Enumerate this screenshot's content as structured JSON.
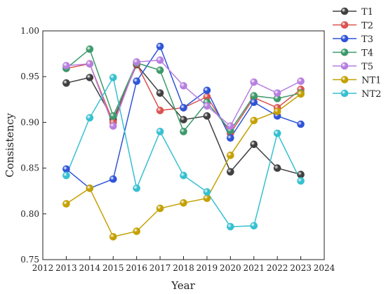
{
  "chart_data": {
    "type": "line",
    "xlabel": "Year",
    "ylabel": "Consistency",
    "xlim": [
      2012,
      2024
    ],
    "ylim": [
      0.75,
      1.0
    ],
    "xticks": [
      "2012",
      "2013",
      "2014",
      "2015",
      "2016",
      "2017",
      "2018",
      "2019",
      "2020",
      "2021",
      "2022",
      "2023",
      "2024"
    ],
    "yticks": [
      "0.75",
      "0.80",
      "0.85",
      "0.90",
      "0.95",
      "1.00"
    ],
    "legend_position": "right",
    "grid": false,
    "x": [
      2013,
      2014,
      2015,
      2016,
      2017,
      2018,
      2019,
      2020,
      2021,
      2022,
      2023
    ],
    "series": [
      {
        "name": "T1",
        "color": "#404040",
        "values": [
          0.943,
          0.949,
          0.903,
          0.963,
          0.932,
          0.903,
          0.907,
          0.846,
          0.876,
          0.85,
          0.843
        ]
      },
      {
        "name": "T2",
        "color": "#d9534f",
        "values": [
          0.959,
          0.964,
          0.9,
          0.964,
          0.913,
          0.916,
          0.928,
          0.888,
          0.927,
          0.916,
          0.936
        ]
      },
      {
        "name": "T3",
        "color": "#2f54d9",
        "values": [
          0.849,
          0.828,
          0.838,
          0.945,
          0.983,
          0.916,
          0.935,
          0.883,
          0.922,
          0.907,
          0.898
        ]
      },
      {
        "name": "T4",
        "color": "#3c9a6a",
        "values": [
          0.959,
          0.98,
          0.907,
          0.965,
          0.957,
          0.89,
          0.922,
          0.891,
          0.929,
          0.926,
          0.932
        ]
      },
      {
        "name": "T5",
        "color": "#b77fe0",
        "values": [
          0.962,
          0.964,
          0.896,
          0.966,
          0.968,
          0.94,
          0.918,
          0.896,
          0.944,
          0.932,
          0.945
        ]
      },
      {
        "name": "NT1",
        "color": "#c4a000",
        "values": [
          0.811,
          0.828,
          0.775,
          0.781,
          0.806,
          0.812,
          0.817,
          0.864,
          0.902,
          0.912,
          0.931
        ]
      },
      {
        "name": "NT2",
        "color": "#36c0d0",
        "values": [
          0.842,
          0.905,
          0.949,
          0.828,
          0.89,
          0.842,
          0.824,
          0.786,
          0.787,
          0.888,
          0.836
        ]
      }
    ]
  }
}
